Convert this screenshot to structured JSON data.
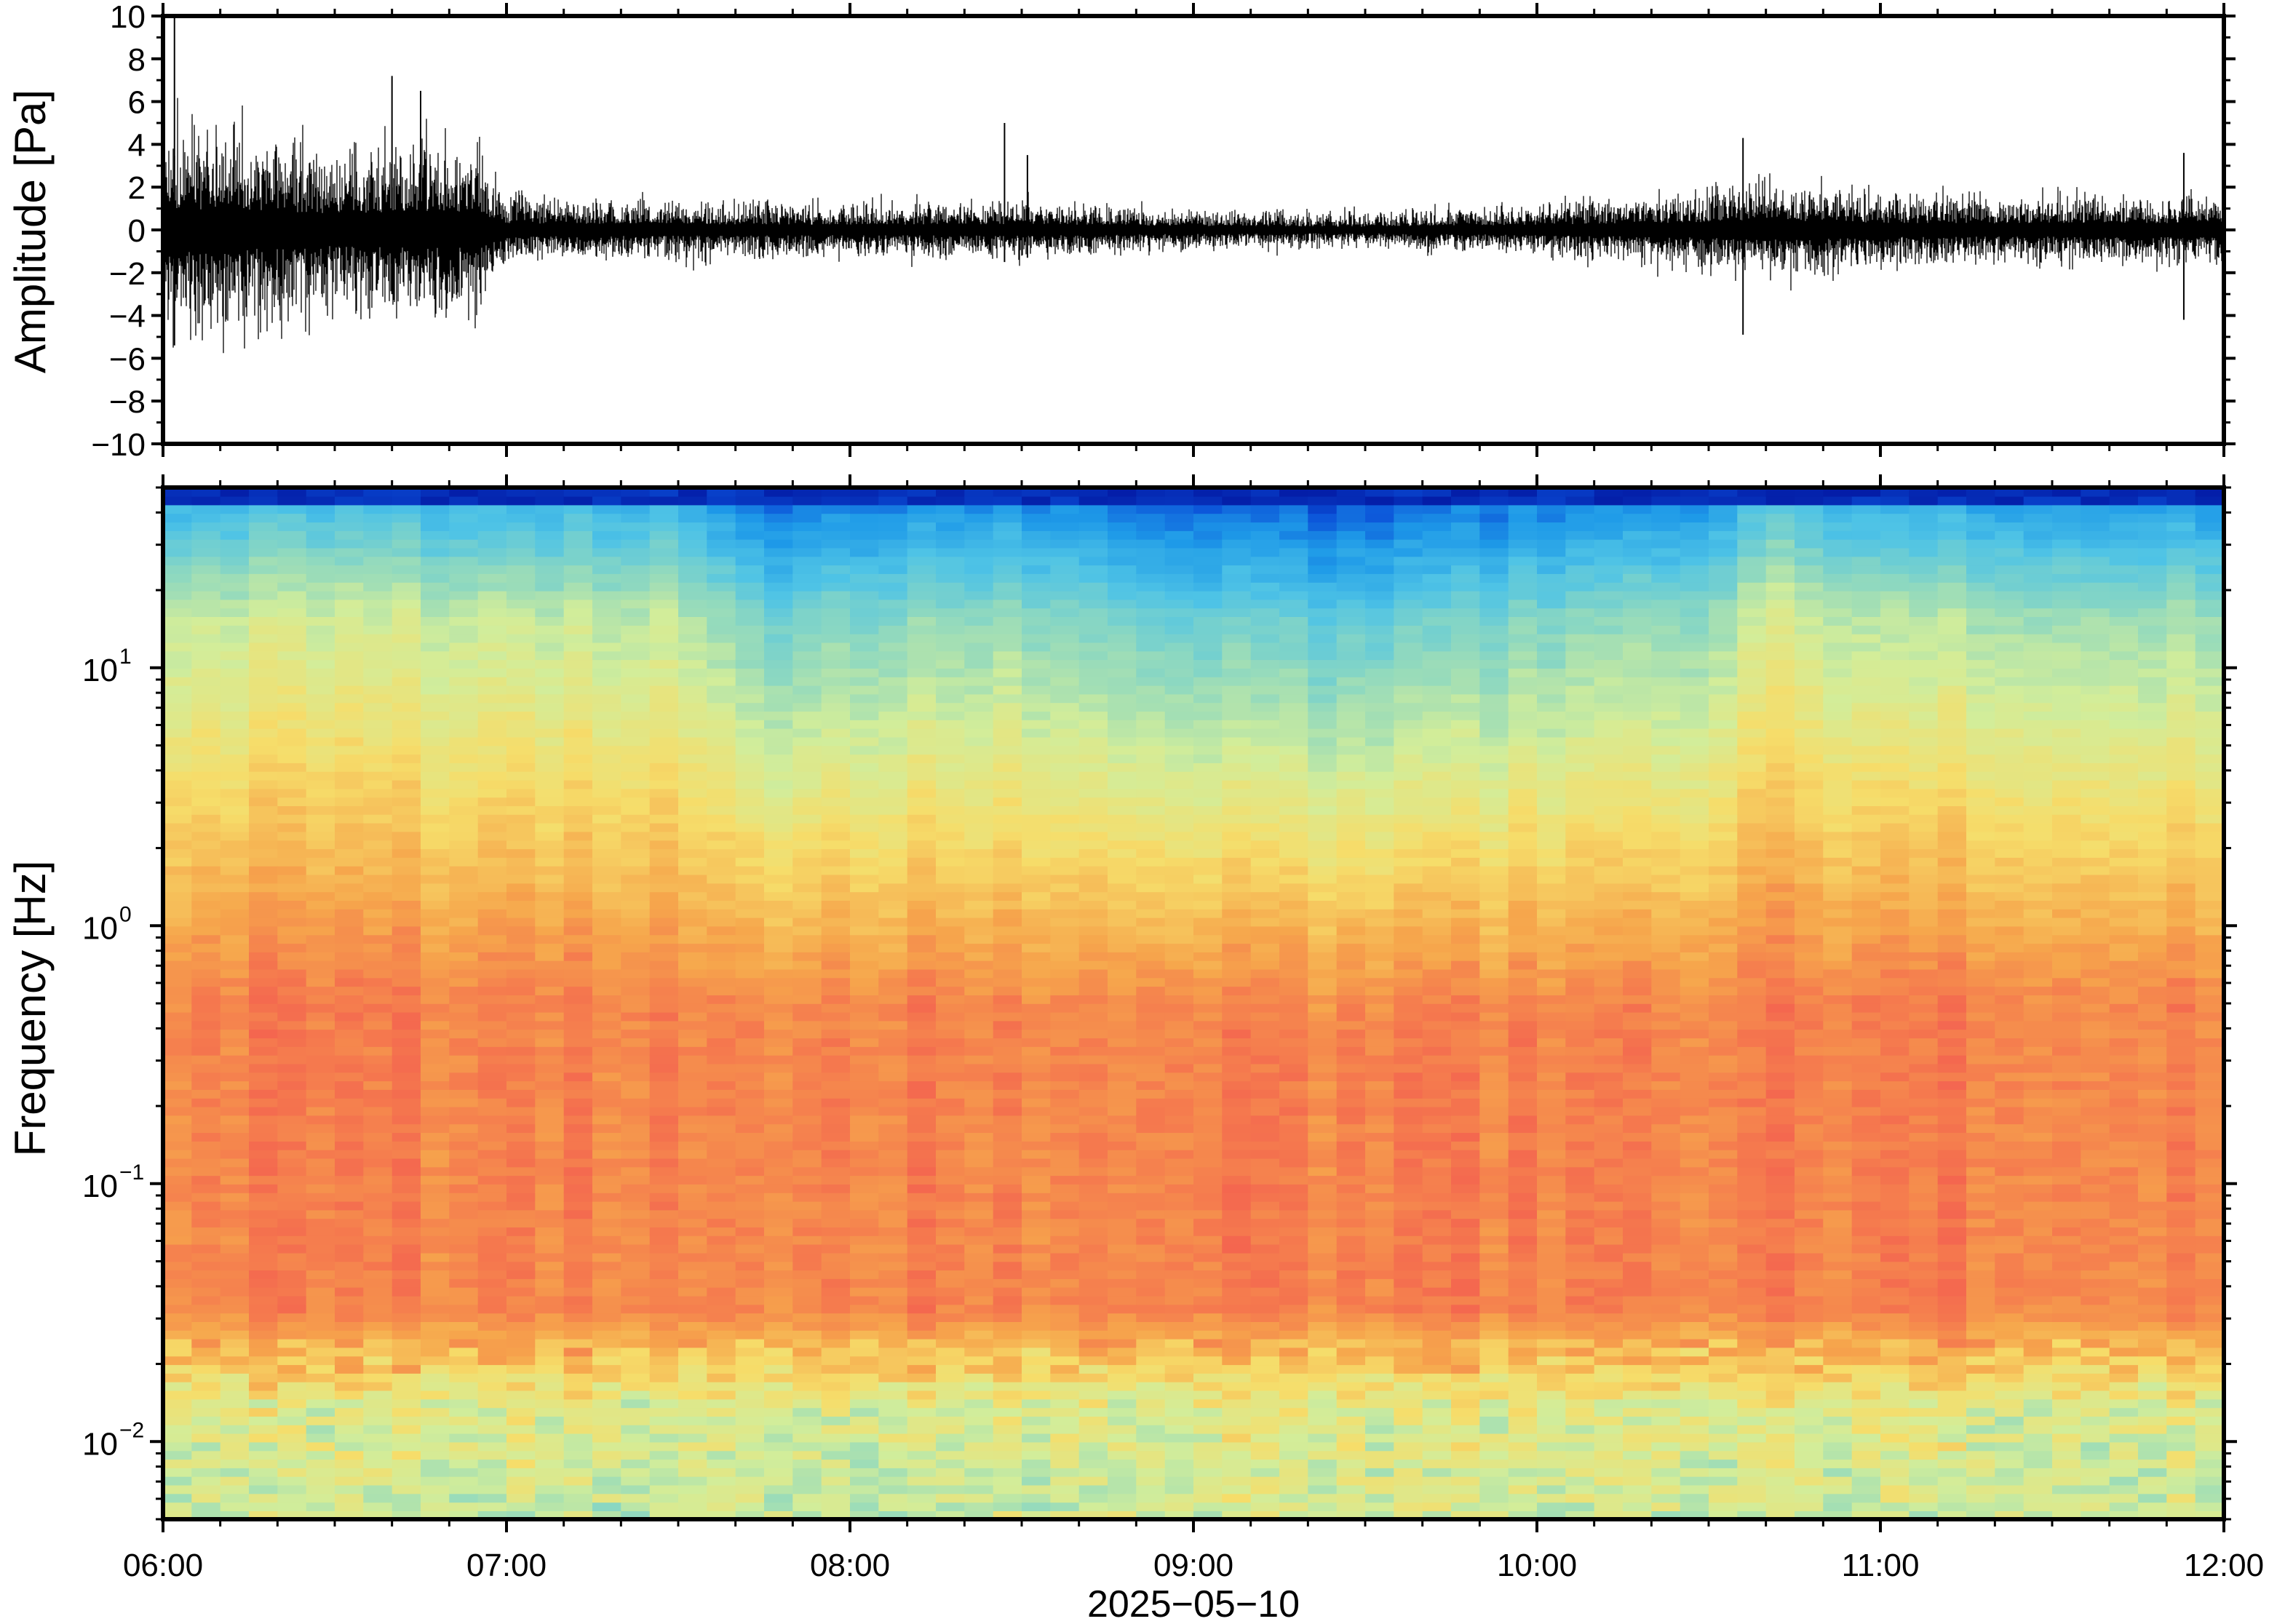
{
  "chart_data": [
    {
      "type": "line",
      "panel": "waveform",
      "ylabel": "Amplitude [Pa]",
      "ylim": [
        -10,
        10
      ],
      "yticks": [
        "10",
        "8",
        "6",
        "4",
        "2",
        "0",
        "−2",
        "−4",
        "−6",
        "−8",
        "−10"
      ],
      "xlim": [
        "06:00",
        "12:00"
      ],
      "line_color": "#000000",
      "envelope": [
        {
          "t": "06:00",
          "amp": 3.2
        },
        {
          "t": "06:15",
          "amp": 3.0
        },
        {
          "t": "06:30",
          "amp": 2.4
        },
        {
          "t": "06:45",
          "amp": 2.8
        },
        {
          "t": "06:55",
          "amp": 2.6
        },
        {
          "t": "07:00",
          "amp": 1.0
        },
        {
          "t": "07:30",
          "amp": 0.9
        },
        {
          "t": "08:00",
          "amp": 0.8
        },
        {
          "t": "08:30",
          "amp": 0.9
        },
        {
          "t": "09:00",
          "amp": 0.6
        },
        {
          "t": "09:30",
          "amp": 0.5
        },
        {
          "t": "10:00",
          "amp": 0.8
        },
        {
          "t": "10:30",
          "amp": 1.2
        },
        {
          "t": "10:40",
          "amp": 1.5
        },
        {
          "t": "11:00",
          "amp": 1.1
        },
        {
          "t": "11:30",
          "amp": 1.0
        },
        {
          "t": "12:00",
          "amp": 1.1
        }
      ],
      "spikes": [
        {
          "t": "06:02",
          "min": -5.4,
          "max": 10
        },
        {
          "t": "06:40",
          "min": -3.0,
          "max": 7.2
        },
        {
          "t": "06:45",
          "min": -2.5,
          "max": 6.5
        },
        {
          "t": "08:27",
          "min": -1.5,
          "max": 5.0
        },
        {
          "t": "08:31",
          "min": -1.3,
          "max": 3.5
        },
        {
          "t": "10:36",
          "min": -4.9,
          "max": 4.3
        },
        {
          "t": "11:53",
          "min": -4.2,
          "max": 3.6
        }
      ]
    },
    {
      "type": "heatmap",
      "panel": "spectrogram",
      "ylabel": "Frequency [Hz]",
      "yscale": "log",
      "ylim": [
        0.005,
        50
      ],
      "yticks": [
        {
          "value": 10,
          "base": "10",
          "exp": "1"
        },
        {
          "value": 1,
          "base": "10",
          "exp": "0"
        },
        {
          "value": 0.1,
          "base": "10",
          "exp": "−1"
        },
        {
          "value": 0.01,
          "base": "10",
          "exp": "−2"
        }
      ],
      "xlabel": "2025−05−10",
      "xlim": [
        "06:00",
        "12:00"
      ],
      "xticks": [
        "06:00",
        "07:00",
        "08:00",
        "09:00",
        "10:00",
        "11:00",
        "12:00"
      ],
      "colormap": [
        "#00008b",
        "#0a4fd8",
        "#1e9ae8",
        "#4ec3e6",
        "#8ad7c2",
        "#d2ed9a",
        "#f6dd6a",
        "#f6a64c",
        "#f4664f",
        "#fb9a9f"
      ],
      "column_relative_power": [
        {
          "t": "06:00",
          "level": 0.85
        },
        {
          "t": "06:30",
          "level": 0.88
        },
        {
          "t": "07:00",
          "level": 0.82
        },
        {
          "t": "07:30",
          "level": 0.8
        },
        {
          "t": "07:45",
          "level": 0.35
        },
        {
          "t": "08:00",
          "level": 0.45
        },
        {
          "t": "08:30",
          "level": 0.55
        },
        {
          "t": "09:00",
          "level": 0.25
        },
        {
          "t": "09:30",
          "level": 0.2
        },
        {
          "t": "10:00",
          "level": 0.4
        },
        {
          "t": "10:30",
          "level": 0.55
        },
        {
          "t": "10:40",
          "level": 0.95
        },
        {
          "t": "11:00",
          "level": 0.7
        },
        {
          "t": "11:30",
          "level": 0.65
        },
        {
          "t": "12:00",
          "level": 0.62
        }
      ]
    }
  ]
}
